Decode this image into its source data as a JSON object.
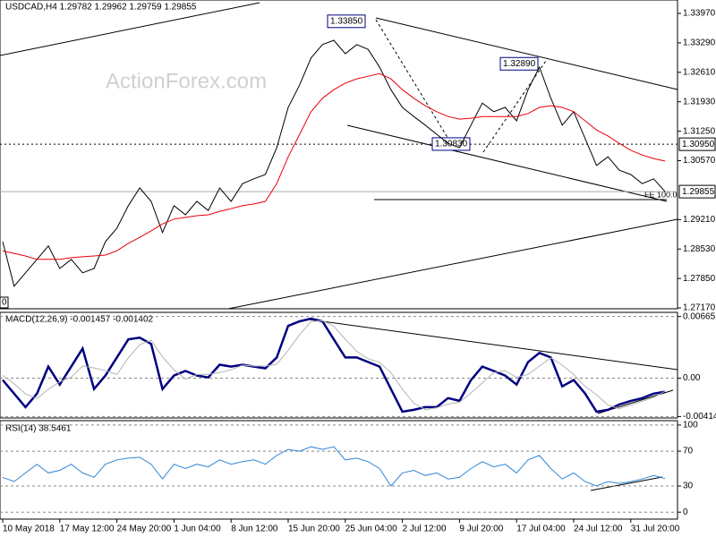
{
  "chart_data": [
    {
      "type": "line",
      "title": "USDCAD,H4  1.29782 1.29962 1.29759 1.29855",
      "watermark": "ActionForex.com",
      "ylim": [
        1.2715,
        1.3428
      ],
      "yticks": [
        {
          "value": 1.3397,
          "label": "1.33970"
        },
        {
          "value": 1.3329,
          "label": "1.33290"
        },
        {
          "value": 1.3261,
          "label": "1.32610"
        },
        {
          "value": 1.3193,
          "label": "1.31930"
        },
        {
          "value": 1.3125,
          "label": "1.31250"
        },
        {
          "value": 1.3057,
          "label": "1.30570"
        },
        {
          "value": 1.2921,
          "label": "1.29210"
        },
        {
          "value": 1.2853,
          "label": "1.28530"
        },
        {
          "value": 1.2785,
          "label": "1.27850"
        },
        {
          "value": 1.2717,
          "label": "1.27170"
        }
      ],
      "levels": [
        {
          "value": 1.3095,
          "label": "1.30950"
        },
        {
          "value": 1.29855,
          "label": "1.29855"
        }
      ],
      "annotations": [
        {
          "value": 1.3385,
          "label": "1.33850"
        },
        {
          "value": 1.3289,
          "label": "1.32890"
        },
        {
          "value": 1.3083,
          "label": "1.30830"
        }
      ],
      "notes": [
        "FE 100.0",
        "0"
      ],
      "series": [
        {
          "color": "#000000",
          "values": [
            1.287,
            1.2767,
            1.2798,
            1.2829,
            1.286,
            1.2808,
            1.2829,
            1.2798,
            1.2808,
            1.287,
            1.2901,
            1.2953,
            1.2994,
            1.2963,
            1.2891,
            1.2953,
            1.2932,
            1.2963,
            1.2942,
            1.2994,
            1.2963,
            1.3004,
            1.3015,
            1.3025,
            1.3087,
            1.318,
            1.3232,
            1.3294,
            1.3325,
            1.3335,
            1.3304,
            1.3325,
            1.3314,
            1.3273,
            1.3221,
            1.318,
            1.3159,
            1.3139,
            1.3118,
            1.3097,
            1.3087,
            1.3139,
            1.319,
            1.317,
            1.318,
            1.3149,
            1.3221,
            1.3273,
            1.3201,
            1.3139,
            1.317,
            1.3108,
            1.3046,
            1.3066,
            1.3035,
            1.3025,
            1.3004,
            1.3015,
            1.29855
          ]
        },
        {
          "color": "#e8000b",
          "values": [
            1.2849,
            1.2843,
            1.2837,
            1.2829,
            1.2829,
            1.2829,
            1.2833,
            1.2835,
            1.2837,
            1.2839,
            1.2849,
            1.2866,
            1.288,
            1.2895,
            1.2911,
            1.2922,
            1.2926,
            1.293,
            1.2932,
            1.294,
            1.2946,
            1.2953,
            1.2957,
            1.2963,
            1.3004,
            1.3066,
            1.3118,
            1.317,
            1.3201,
            1.3221,
            1.3236,
            1.3246,
            1.3252,
            1.3258,
            1.3246,
            1.3221,
            1.3201,
            1.3184,
            1.317,
            1.3159,
            1.3153,
            1.3155,
            1.3159,
            1.3159,
            1.3159,
            1.3159,
            1.3166,
            1.318,
            1.3184,
            1.318,
            1.317,
            1.3149,
            1.3128,
            1.3114,
            1.3097,
            1.3081,
            1.307,
            1.3062,
            1.3056
          ]
        }
      ]
    },
    {
      "type": "line",
      "title": "MACD(12,26,9) -0.001457 -0.001402",
      "grid": true,
      "ylim": [
        -0.0043,
        0.0071
      ],
      "yticks": [
        0.006651,
        {
          "value": 0,
          "label": "0.00"
        },
        -0.004145
      ],
      "series": [
        {
          "color": "#000080",
          "values": [
            -0.0002,
            -0.00167,
            -0.00313,
            -0.00167,
            0.00125,
            -0.0007,
            0.00125,
            0.0032,
            -0.00118,
            0.00028,
            0.00223,
            0.00418,
            0.00437,
            0.00369,
            -0.00118,
            0.00028,
            0.00077,
            0.00028,
            8e-05,
            0.00145,
            0.00125,
            0.00145,
            0.00125,
            0.00106,
            0.00223,
            0.00564,
            0.00613,
            0.00642,
            0.00613,
            0.00418,
            0.00223,
            0.00223,
            0.00174,
            0.00125,
            -0.00118,
            -0.00362,
            -0.00342,
            -0.00313,
            -0.00313,
            -0.00216,
            -0.00245,
            -0.00021,
            0.00125,
            0.00077,
            0.00028,
            -0.0007,
            0.00174,
            0.00272,
            0.00223,
            -0.00089,
            -0.0002,
            -0.00167,
            -0.00362,
            -0.00342,
            -0.00284,
            -0.00245,
            -0.00216,
            -0.00167,
            -0.001457
          ]
        },
        {
          "color": "#b4b4b4",
          "values": [
            0.0003,
            -0.0006,
            -0.0017,
            -0.0022,
            -0.0012,
            -0.0004,
            0.0001,
            0.0013,
            0.0011,
            0.0008,
            0.0004,
            0.0022,
            0.0036,
            0.0041,
            0.0023,
            0.0009,
            -0.0001,
            0.0004,
            0.0004,
            0.0006,
            0.0009,
            0.0014,
            0.0013,
            0.0013,
            0.0015,
            0.003,
            0.0047,
            0.0061,
            0.0062,
            0.0056,
            0.0042,
            0.0029,
            0.0021,
            0.0017,
            0.0006,
            -0.0012,
            -0.0027,
            -0.0034,
            -0.0032,
            -0.0028,
            -0.0026,
            -0.0016,
            -0.0005,
            0.0006,
            0.0008,
            0.0001,
            0.0004,
            0.0013,
            0.0022,
            0.0014,
            0.0004,
            -0.0009,
            -0.0018,
            -0.0029,
            -0.0033,
            -0.0029,
            -0.0025,
            -0.0021,
            -0.001402
          ]
        }
      ]
    },
    {
      "type": "line",
      "title": "RSI(14) 38.5461",
      "grid": true,
      "ylim": [
        -8,
        105
      ],
      "yticks": [
        100,
        70,
        30,
        0
      ],
      "categories": [
        "10 May 2018",
        null,
        null,
        null,
        null,
        "17 May 12:00",
        null,
        null,
        null,
        null,
        "24 May 20:00",
        null,
        null,
        null,
        null,
        "1 Jun 04:00",
        null,
        null,
        null,
        null,
        "8 Jun 12:00",
        null,
        null,
        null,
        null,
        "15 Jun 20:00",
        null,
        null,
        null,
        null,
        "25 Jun 04:00",
        null,
        null,
        null,
        null,
        "2 Jul 12:00",
        null,
        null,
        null,
        null,
        "9 Jul 20:00",
        null,
        null,
        null,
        null,
        "17 Jul 04:00",
        null,
        null,
        null,
        null,
        "24 Jul 12:00",
        null,
        null,
        null,
        null,
        "31 Jul 20:00",
        null,
        null,
        null
      ],
      "series": [
        {
          "color": "#2e86d6",
          "values": [
            40,
            35,
            45,
            55,
            45,
            48,
            55,
            45,
            40,
            55,
            60,
            62,
            63,
            55,
            38,
            55,
            50,
            55,
            52,
            60,
            55,
            58,
            60,
            55,
            65,
            72,
            70,
            75,
            72,
            75,
            60,
            62,
            58,
            50,
            30,
            45,
            48,
            42,
            45,
            38,
            40,
            50,
            58,
            52,
            55,
            45,
            60,
            65,
            50,
            38,
            45,
            35,
            30,
            35,
            33,
            35,
            38,
            42,
            38.5461
          ]
        }
      ]
    }
  ]
}
